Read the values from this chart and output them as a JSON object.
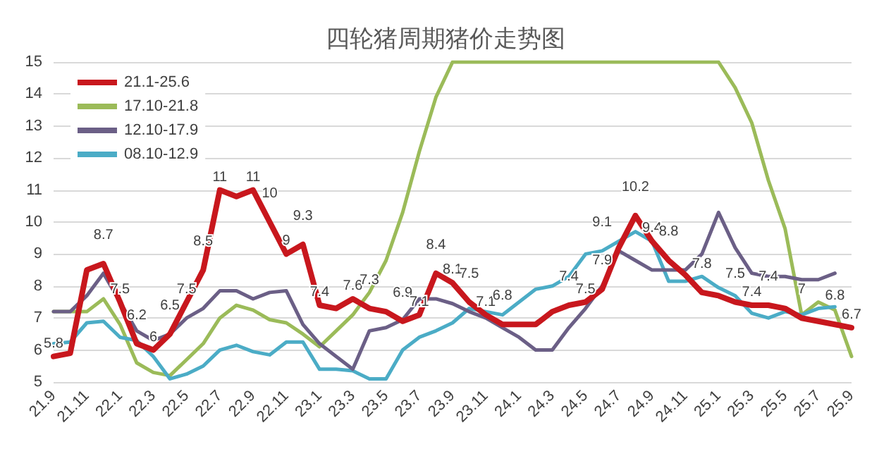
{
  "chart_data": {
    "type": "line",
    "title": "四轮猪周期猪价走势图",
    "categories": [
      "21.9",
      null,
      "21.11",
      null,
      "22.1",
      null,
      "22.3",
      null,
      "22.5",
      null,
      "22.7",
      null,
      "22.9",
      null,
      "22.11",
      null,
      "23.1",
      null,
      "23.3",
      null,
      "23.5",
      null,
      "23.7",
      null,
      "23.9",
      null,
      "23.11",
      null,
      "24.1",
      null,
      "24.3",
      null,
      "24.5",
      null,
      "24.7",
      null,
      "24.9",
      null,
      "24.11",
      null,
      "25.1",
      null,
      "25.3",
      null,
      "25.5",
      null,
      "25.7",
      null,
      "25.9"
    ],
    "series": [
      {
        "name": "21.1-25.6",
        "color": "#c8171d",
        "values": [
          5.8,
          5.9,
          8.5,
          8.7,
          7.5,
          6.2,
          6,
          6.5,
          7.5,
          8.5,
          11,
          10.8,
          11,
          10,
          9,
          9.3,
          7.4,
          7.3,
          7.6,
          7.3,
          7.2,
          6.9,
          7.1,
          8.4,
          8.1,
          7.5,
          7.1,
          6.8,
          6.8,
          6.8,
          7.2,
          7.4,
          7.5,
          7.9,
          9.2,
          10.2,
          9.4,
          8.8,
          8.35,
          7.8,
          7.7,
          7.5,
          7.4,
          7.4,
          7.3,
          7,
          6.9,
          6.8,
          6.7
        ],
        "value_labels": [
          "5.8",
          null,
          null,
          "8.7",
          "7.5",
          "6.2",
          "6",
          "6.5",
          "7.5",
          "8.5",
          "11",
          null,
          "11",
          "10",
          "9",
          "9.3",
          "7.4",
          null,
          "7.6",
          "7.3",
          null,
          "6.9",
          "7.1",
          "8.4",
          "8.1",
          "7.5",
          "7.1",
          "6.8",
          null,
          null,
          null,
          "7.4",
          "7.5",
          "7.9",
          null,
          "10.2",
          "9.4",
          "8.8",
          null,
          "7.8",
          null,
          "7.5",
          "7.4",
          "7.4",
          null,
          "7",
          null,
          "6.8",
          "6.7"
        ]
      },
      {
        "name": "17.10-21.8",
        "color": "#9bbb59",
        "values": [
          7.2,
          7.2,
          7.2,
          7.6,
          6.8,
          5.6,
          5.3,
          5.2,
          5.7,
          6.2,
          7,
          7.4,
          7.25,
          6.95,
          6.85,
          6.5,
          6.1,
          6.6,
          7.1,
          7.8,
          8.8,
          10.3,
          12.2,
          13.9,
          15,
          15,
          15,
          15,
          15,
          15,
          15,
          15,
          15,
          15,
          15,
          15,
          15,
          15,
          15,
          15,
          15,
          14.2,
          13.1,
          11.3,
          9.8,
          7.1,
          7.5,
          7.25,
          5.8
        ]
      },
      {
        "name": "12.10-17.9",
        "color": "#6b5f86",
        "values": [
          7.2,
          7.2,
          7.7,
          8.4,
          7.5,
          6.6,
          6.3,
          6.5,
          7,
          7.3,
          7.85,
          7.85,
          7.6,
          7.8,
          7.85,
          6.8,
          6.2,
          5.8,
          5.4,
          6.6,
          6.7,
          6.95,
          7.6,
          7.6,
          7.45,
          7.2,
          7,
          6.7,
          6.4,
          6,
          6,
          6.7,
          7.3,
          8,
          9.1,
          8.8,
          8.5,
          8.5,
          8.5,
          9,
          10.3,
          9.2,
          8.4,
          8.3,
          8.3,
          8.2,
          8.2,
          8.4,
          null
        ]
      },
      {
        "name": "08.10-12.9",
        "color": "#4bacc6",
        "values": [
          6.2,
          6.25,
          6.85,
          6.9,
          6.4,
          6.3,
          5.8,
          5.1,
          5.25,
          5.5,
          6,
          6.15,
          5.95,
          5.85,
          6.25,
          6.25,
          5.4,
          5.4,
          5.35,
          5.1,
          5.1,
          6,
          6.4,
          6.6,
          6.85,
          7.3,
          7.2,
          7.1,
          7.5,
          7.9,
          8,
          8.3,
          9,
          9.1,
          9.4,
          9.7,
          9.4,
          8.15,
          8.15,
          8.3,
          7.95,
          7.7,
          7.15,
          7,
          7.2,
          7.1,
          7.3,
          7.35,
          null
        ],
        "value_labels": [
          null,
          null,
          null,
          null,
          null,
          null,
          null,
          null,
          null,
          null,
          null,
          null,
          null,
          null,
          null,
          null,
          null,
          null,
          null,
          null,
          null,
          null,
          null,
          null,
          null,
          null,
          null,
          null,
          null,
          null,
          null,
          null,
          null,
          "9.1",
          null,
          null,
          null,
          null,
          null,
          null,
          null,
          null,
          null,
          null,
          null,
          null,
          null,
          null,
          null
        ]
      }
    ],
    "ylim": [
      5,
      15
    ],
    "yticks": [
      5,
      6,
      7,
      8,
      9,
      10,
      11,
      12,
      13,
      14,
      15
    ],
    "grid": "y",
    "legend": "top left",
    "marker": "none",
    "line_style": "solid"
  }
}
